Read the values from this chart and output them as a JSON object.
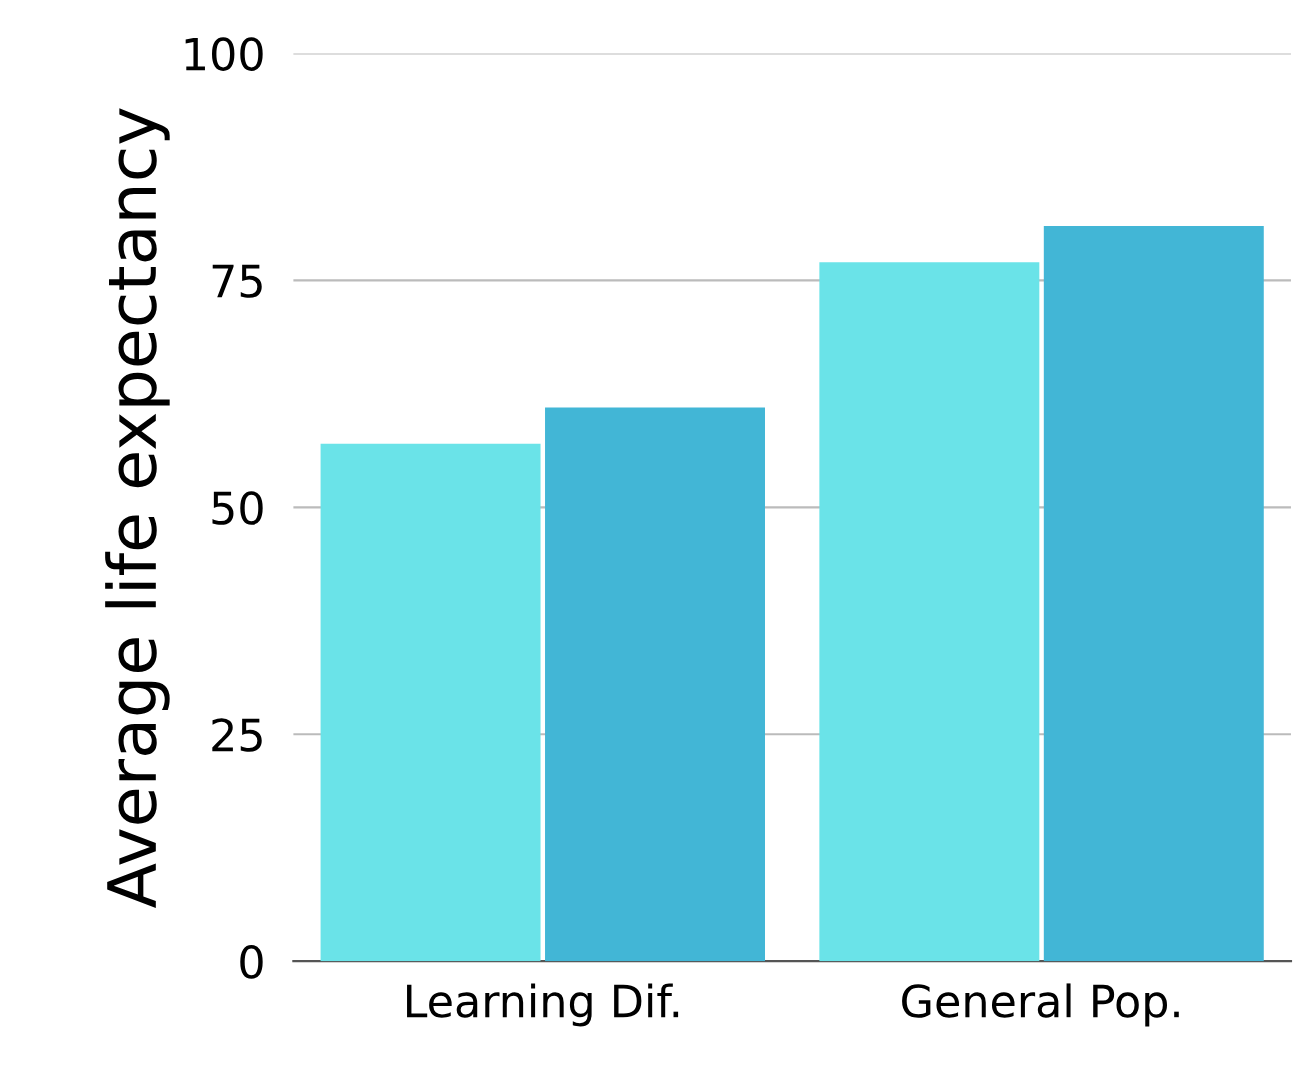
{
  "chart_data": {
    "type": "bar",
    "ylabel": "Average life expectancy",
    "categories": [
      "Learning Dif.",
      "General Pop."
    ],
    "series": [
      {
        "color": "#6ae3e8",
        "values": [
          57,
          77
        ]
      },
      {
        "color": "#42b6d6",
        "values": [
          61,
          81
        ]
      }
    ],
    "ylim": [
      0,
      100
    ],
    "yticks": [
      0,
      25,
      50,
      75,
      100
    ],
    "grid": "y",
    "legend": false
  }
}
